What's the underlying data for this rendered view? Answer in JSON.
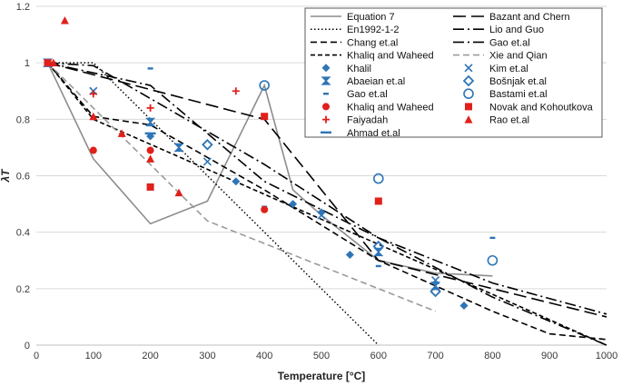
{
  "chart_data": {
    "type": "scatter",
    "title": "",
    "xlabel": "Temperature [°C]",
    "ylabel": "λT",
    "xlim": [
      0,
      1000
    ],
    "ylim": [
      0,
      1.2
    ],
    "xticks": [
      0,
      100,
      200,
      300,
      400,
      500,
      600,
      700,
      800,
      900,
      1000
    ],
    "yticks": [
      0,
      0.2,
      0.4,
      0.6,
      0.8,
      1,
      1.2
    ],
    "xtick_labels": [
      "0",
      "100",
      "200",
      "300",
      "400",
      "500",
      "600",
      "700",
      "800",
      "900",
      "1000"
    ],
    "ytick_labels": [
      "0",
      "0.2",
      "0.4",
      "0.6",
      "0.8",
      "1",
      "1.2"
    ],
    "grid": true,
    "legend_position": "top-right",
    "lines": [
      {
        "name": "Equation 7",
        "color": "#8c8c8c",
        "style": "solid",
        "x": [
          20,
          100,
          200,
          300,
          400,
          450,
          500,
          600,
          700,
          800
        ],
        "y": [
          1.0,
          0.66,
          0.43,
          0.51,
          0.92,
          0.55,
          0.46,
          0.3,
          0.255,
          0.245
        ]
      },
      {
        "name": "Bazant and Chern",
        "color": "#000000",
        "style": "longdash",
        "x": [
          20,
          400,
          600,
          1000
        ],
        "y": [
          1.0,
          0.8,
          0.3,
          0.1
        ]
      },
      {
        "name": "En1992-1-2",
        "color": "#000000",
        "style": "dot",
        "x": [
          20,
          100,
          600
        ],
        "y": [
          1.0,
          1.0,
          0.0
        ]
      },
      {
        "name": "Lio and Guo",
        "color": "#000000",
        "style": "dashdot",
        "x": [
          20,
          100,
          400,
          600,
          800,
          1000
        ],
        "y": [
          1.0,
          0.99,
          0.64,
          0.38,
          0.17,
          0.0
        ]
      },
      {
        "name": "Chang et.al",
        "color": "#000000",
        "style": "dash",
        "x": [
          20,
          100,
          200,
          400,
          600,
          800,
          900,
          1000
        ],
        "y": [
          1.0,
          0.81,
          0.78,
          0.55,
          0.3,
          0.12,
          0.04,
          0.02
        ]
      },
      {
        "name": "Gao et.al",
        "color": "#000000",
        "style": "dashdot",
        "x": [
          20,
          200,
          400,
          600,
          800,
          1000
        ],
        "y": [
          1.0,
          0.92,
          0.58,
          0.38,
          0.22,
          0.11
        ]
      },
      {
        "name": "Khaliq and Waheed",
        "color": "#000000",
        "style": "shortdash",
        "x": [
          20,
          100,
          800,
          1000
        ],
        "y": [
          1.0,
          0.8,
          0.18,
          0.0
        ]
      },
      {
        "name": "Xie and Qian",
        "color": "#9a9a9a",
        "style": "dash",
        "x": [
          20,
          300,
          700
        ],
        "y": [
          1.0,
          0.44,
          0.12
        ]
      }
    ],
    "scatter": [
      {
        "name": "Khalil",
        "color": "#2e75b6",
        "marker": "diamond",
        "x": [
          20,
          200,
          350,
          450,
          500,
          550,
          750
        ],
        "y": [
          1.0,
          0.74,
          0.58,
          0.5,
          0.47,
          0.32,
          0.14
        ]
      },
      {
        "name": "Kim et.al",
        "color": "#2e75b6",
        "marker": "x",
        "x": [
          20,
          100,
          300,
          500,
          700
        ],
        "y": [
          1.0,
          0.9,
          0.65,
          0.46,
          0.23
        ]
      },
      {
        "name": "Abaeian et.al",
        "color": "#2e75b6",
        "marker": "hourglass",
        "x": [
          20,
          200,
          250,
          600,
          700
        ],
        "y": [
          1.0,
          0.79,
          0.7,
          0.33,
          0.21
        ]
      },
      {
        "name": "Bošnjak et.al",
        "color": "#2e75b6",
        "marker": "opendiamond",
        "x": [
          300,
          600,
          700
        ],
        "y": [
          0.71,
          0.35,
          0.19
        ]
      },
      {
        "name": "Gao et.al",
        "color": "#2e75b6",
        "marker": "dash",
        "x": [
          20,
          200,
          400,
          600,
          800
        ],
        "y": [
          1.0,
          0.98,
          0.49,
          0.28,
          0.38
        ]
      },
      {
        "name": "Bastami et.al",
        "color": "#2e75b6",
        "marker": "opencircle",
        "x": [
          400,
          600,
          800
        ],
        "y": [
          0.92,
          0.59,
          0.3
        ]
      },
      {
        "name": "Khaliq and Waheed",
        "color": "#e0201b",
        "marker": "circle",
        "x": [
          20,
          100,
          200,
          400
        ],
        "y": [
          1.0,
          0.69,
          0.69,
          0.48
        ]
      },
      {
        "name": "Novak and Kohoutkova",
        "color": "#e0201b",
        "marker": "square",
        "x": [
          20,
          200,
          400,
          600
        ],
        "y": [
          1.0,
          0.56,
          0.81,
          0.51
        ]
      },
      {
        "name": "Faiyadah",
        "color": "#e0201b",
        "marker": "plus",
        "x": [
          20,
          100,
          200,
          350
        ],
        "y": [
          1.0,
          0.89,
          0.84,
          0.9
        ]
      },
      {
        "name": "Rao et.al",
        "color": "#e0201b",
        "marker": "triangle",
        "x": [
          30,
          50,
          100,
          150,
          200,
          250
        ],
        "y": [
          1.0,
          1.15,
          0.81,
          0.75,
          0.66,
          0.54
        ]
      },
      {
        "name": "Ahmad et.al",
        "color": "#2e75b6",
        "marker": "dashwide",
        "x": [
          200
        ],
        "y": [
          0.75
        ]
      }
    ],
    "legend": [
      {
        "name": "Equation 7",
        "kind": "line",
        "ref": 0
      },
      {
        "name": "Bazant and Chern",
        "kind": "line",
        "ref": 1
      },
      {
        "name": "En1992-1-2",
        "kind": "line",
        "ref": 2
      },
      {
        "name": "Lio and Guo",
        "kind": "line",
        "ref": 3
      },
      {
        "name": "Chang et.al",
        "kind": "line",
        "ref": 4
      },
      {
        "name": "Gao et.al",
        "kind": "line",
        "ref": 5
      },
      {
        "name": "Khaliq and Waheed",
        "kind": "line",
        "ref": 6
      },
      {
        "name": "Xie and Qian",
        "kind": "line",
        "ref": 7
      },
      {
        "name": "Khalil",
        "kind": "scatter",
        "ref": 0
      },
      {
        "name": "Kim et.al",
        "kind": "scatter",
        "ref": 1
      },
      {
        "name": "Abaeian et.al",
        "kind": "scatter",
        "ref": 2
      },
      {
        "name": "Bošnjak et.al",
        "kind": "scatter",
        "ref": 3
      },
      {
        "name": "Gao et.al",
        "kind": "scatter",
        "ref": 4
      },
      {
        "name": "Bastami et.al",
        "kind": "scatter",
        "ref": 5
      },
      {
        "name": "Khaliq and Waheed",
        "kind": "scatter",
        "ref": 6
      },
      {
        "name": "Novak and Kohoutkova",
        "kind": "scatter",
        "ref": 7
      },
      {
        "name": "Faiyadah",
        "kind": "scatter",
        "ref": 8
      },
      {
        "name": "Rao et.al",
        "kind": "scatter",
        "ref": 9
      },
      {
        "name": "Ahmad et.al",
        "kind": "scatter",
        "ref": 10
      }
    ]
  }
}
